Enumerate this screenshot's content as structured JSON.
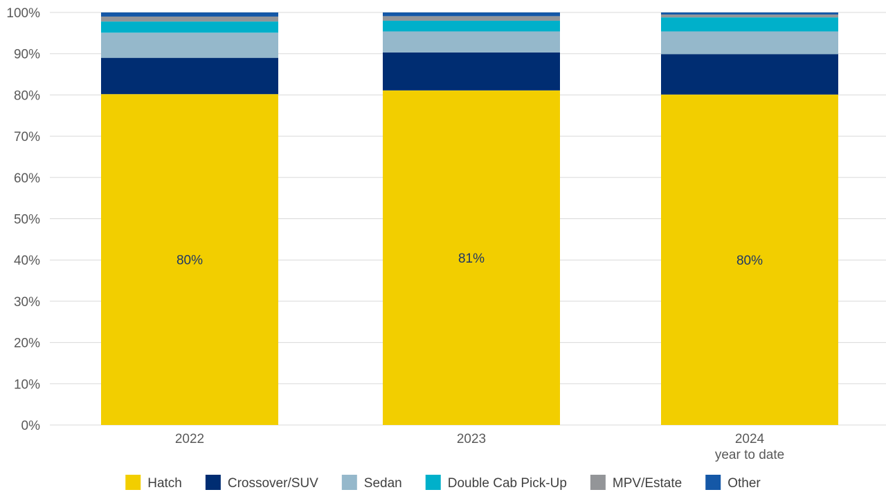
{
  "chart_data": {
    "type": "bar",
    "stacked": true,
    "categories": [
      "2022",
      "2023",
      "2024\nyear to date"
    ],
    "y_tick_labels": [
      "0%",
      "10%",
      "20%",
      "30%",
      "40%",
      "50%",
      "60%",
      "70%",
      "80%",
      "90%",
      "100%"
    ],
    "ylim": [
      0,
      100
    ],
    "grid": true,
    "legend_position": "bottom",
    "series": [
      {
        "name": "Hatch",
        "color": "#f2ce00",
        "values": [
          80.2,
          81.1,
          80.1
        ],
        "labels": [
          "80%",
          "81%",
          "80%"
        ]
      },
      {
        "name": "Crossover/SUV",
        "color": "#002d72",
        "values": [
          8.8,
          9.2,
          9.8
        ]
      },
      {
        "name": "Sedan",
        "color": "#95b8cb",
        "values": [
          6.1,
          5.1,
          5.5
        ]
      },
      {
        "name": "Double Cab Pick-Up",
        "color": "#00b0ca",
        "values": [
          2.7,
          2.6,
          3.4
        ]
      },
      {
        "name": "MPV/Estate",
        "color": "#939598",
        "values": [
          1.2,
          1.1,
          0.7
        ]
      },
      {
        "name": "Other",
        "color": "#1558a7",
        "values": [
          1.0,
          0.9,
          0.5
        ]
      }
    ]
  }
}
